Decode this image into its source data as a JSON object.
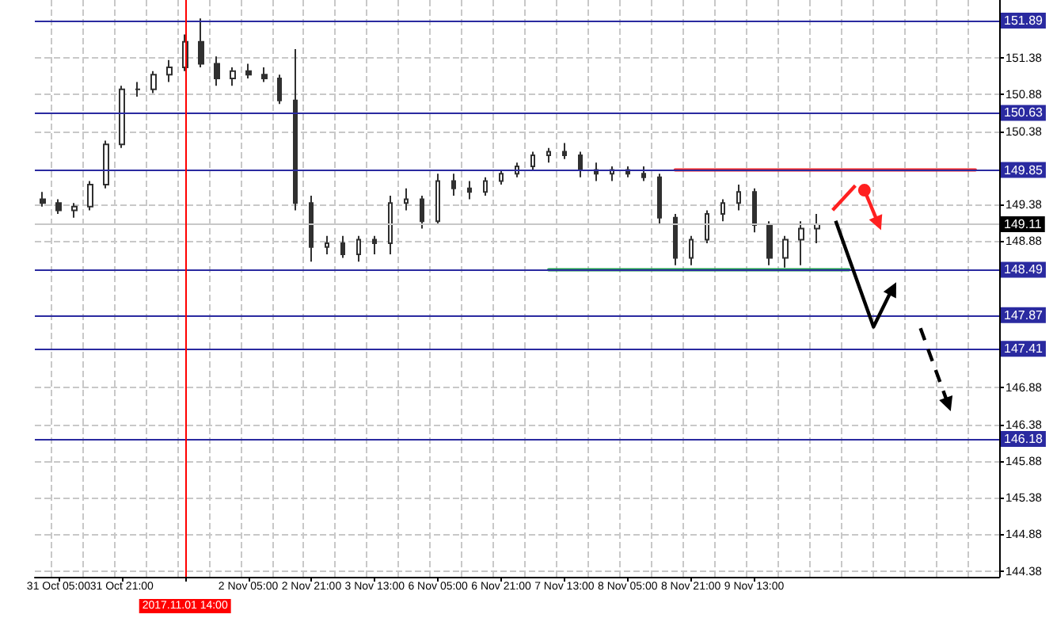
{
  "chart_data": {
    "type": "candlestick",
    "categories": [
      null,
      "31 Oct 05:00",
      null,
      null,
      null,
      "31 Oct 21:00",
      null,
      null,
      null,
      "2017.11.01 14:00",
      null,
      null,
      null,
      "2 Nov 05:00",
      null,
      null,
      null,
      "2 Nov 21:00",
      null,
      null,
      null,
      "3 Nov 13:00",
      null,
      null,
      null,
      "6 Nov 05:00",
      null,
      null,
      null,
      "6 Nov 21:00",
      null,
      null,
      null,
      "7 Nov 13:00",
      null,
      null,
      null,
      "8 Nov 05:00",
      null,
      null,
      null,
      "8 Nov 21:00",
      null,
      null,
      null,
      "9 Nov 13:00",
      null,
      null,
      null,
      null,
      null,
      null,
      null,
      null,
      null,
      null,
      null,
      null,
      null,
      null,
      null
    ],
    "series": [
      {
        "color": "#303030",
        "ohlc": [
          [
            149.45,
            149.55,
            149.35,
            149.4
          ],
          [
            149.4,
            149.45,
            149.25,
            149.3
          ],
          [
            149.3,
            149.4,
            149.2,
            149.35
          ],
          [
            149.35,
            149.7,
            149.3,
            149.65
          ],
          [
            149.65,
            150.25,
            149.6,
            150.2
          ],
          [
            150.2,
            151.0,
            150.15,
            150.95
          ],
          [
            150.95,
            151.05,
            150.85,
            150.95
          ],
          [
            150.95,
            151.2,
            150.9,
            151.15
          ],
          [
            151.15,
            151.35,
            151.05,
            151.25
          ],
          [
            151.25,
            151.7,
            151.2,
            151.6
          ],
          [
            151.6,
            151.92,
            151.25,
            151.3
          ],
          [
            151.3,
            151.4,
            151.0,
            151.1
          ],
          [
            151.1,
            151.25,
            151.0,
            151.2
          ],
          [
            151.2,
            151.3,
            151.1,
            151.15
          ],
          [
            151.15,
            151.25,
            151.05,
            151.1
          ],
          [
            151.1,
            151.15,
            150.75,
            150.8
          ],
          [
            150.8,
            151.5,
            149.3,
            149.4
          ],
          [
            149.4,
            149.5,
            148.6,
            148.8
          ],
          [
            148.8,
            148.95,
            148.7,
            148.85
          ],
          [
            148.85,
            148.95,
            148.65,
            148.7
          ],
          [
            148.7,
            148.95,
            148.6,
            148.9
          ],
          [
            148.9,
            148.95,
            148.7,
            148.85
          ],
          [
            148.85,
            149.5,
            148.7,
            149.4
          ],
          [
            149.4,
            149.6,
            149.3,
            149.45
          ],
          [
            149.45,
            149.5,
            149.05,
            149.15
          ],
          [
            149.15,
            149.8,
            149.1,
            149.7
          ],
          [
            149.7,
            149.8,
            149.5,
            149.6
          ],
          [
            149.6,
            149.7,
            149.45,
            149.55
          ],
          [
            149.55,
            149.75,
            149.5,
            149.7
          ],
          [
            149.7,
            149.85,
            149.65,
            149.8
          ],
          [
            149.8,
            149.95,
            149.75,
            149.9
          ],
          [
            149.9,
            150.1,
            149.85,
            150.05
          ],
          [
            150.05,
            150.15,
            149.95,
            150.1
          ],
          [
            150.1,
            150.22,
            150.0,
            150.05
          ],
          [
            150.05,
            150.1,
            149.75,
            149.85
          ],
          [
            149.85,
            149.95,
            149.7,
            149.8
          ],
          [
            149.8,
            149.9,
            149.7,
            149.85
          ],
          [
            149.85,
            149.9,
            149.75,
            149.8
          ],
          [
            149.8,
            149.9,
            149.7,
            149.75
          ],
          [
            149.75,
            149.8,
            149.1,
            149.2
          ],
          [
            149.2,
            149.25,
            148.55,
            148.65
          ],
          [
            148.65,
            148.95,
            148.55,
            148.9
          ],
          [
            148.9,
            149.3,
            148.85,
            149.25
          ],
          [
            149.25,
            149.45,
            149.15,
            149.4
          ],
          [
            149.4,
            149.65,
            149.3,
            149.55
          ],
          [
            149.55,
            149.6,
            149.0,
            149.1
          ],
          [
            149.1,
            149.15,
            148.55,
            148.65
          ],
          [
            148.65,
            148.95,
            148.52,
            148.9
          ],
          [
            148.9,
            149.15,
            148.55,
            149.05
          ],
          [
            149.05,
            149.25,
            148.85,
            149.11
          ],
          null,
          null,
          null,
          null,
          null,
          null,
          null,
          null,
          null,
          null,
          null
        ]
      },
      {
        "type": "line",
        "color": "#1a9a4a",
        "values": [
          null,
          null,
          null,
          null,
          null,
          null,
          null,
          null,
          null,
          null,
          null,
          null,
          null,
          null,
          null,
          null,
          null,
          null,
          null,
          null,
          null,
          null,
          null,
          null,
          null,
          null,
          null,
          null,
          null,
          null,
          null,
          null,
          148.49,
          148.49,
          148.49,
          148.49,
          148.49,
          148.49,
          148.49,
          148.49,
          148.49,
          148.49,
          148.49,
          148.49,
          148.49,
          148.49,
          148.49,
          148.49,
          148.49,
          148.49,
          148.49,
          148.49,
          null,
          null,
          null,
          null,
          null,
          null,
          null,
          null,
          null
        ]
      },
      {
        "type": "line",
        "color": "#ff2020",
        "values": [
          null,
          null,
          null,
          null,
          null,
          null,
          null,
          null,
          null,
          null,
          null,
          null,
          null,
          null,
          null,
          null,
          null,
          null,
          null,
          null,
          null,
          null,
          null,
          null,
          null,
          null,
          null,
          null,
          null,
          null,
          null,
          null,
          null,
          null,
          null,
          null,
          null,
          null,
          null,
          null,
          149.85,
          149.85,
          149.85,
          149.85,
          149.85,
          149.85,
          149.85,
          149.85,
          149.85,
          149.85,
          149.85,
          149.85,
          149.85,
          149.85,
          149.85,
          149.85,
          149.85,
          149.85,
          149.85,
          149.85,
          null
        ]
      }
    ],
    "ylim": [
      144.3,
      152.17
    ],
    "yticks": [
      144.38,
      144.88,
      145.38,
      145.88,
      146.38,
      146.88,
      148.88,
      149.38,
      150.38,
      150.88,
      151.38
    ],
    "ref_lines": [
      {
        "axis": "y",
        "value": 151.89,
        "label": "151.89",
        "color": "#2a2aa0"
      },
      {
        "axis": "y",
        "value": 150.63,
        "label": "150.63",
        "color": "#2a2aa0"
      },
      {
        "axis": "y",
        "value": 149.85,
        "label": "149.85",
        "color": "#2a2aa0"
      },
      {
        "axis": "y",
        "value": 149.11,
        "label": "149.11",
        "color": "#c8c8c8"
      },
      {
        "axis": "y",
        "value": 148.49,
        "label": "148.49",
        "color": "#2a2aa0"
      },
      {
        "axis": "y",
        "value": 147.87,
        "label": "147.87",
        "color": "#2a2aa0"
      },
      {
        "axis": "y",
        "value": 147.41,
        "label": "147.41",
        "color": "#2a2aa0"
      },
      {
        "axis": "y",
        "value": 146.18,
        "label": "146.18",
        "color": "#2a2aa0"
      },
      {
        "axis": "x",
        "value": "2017.11.01 14:00",
        "color": "#ff0000"
      }
    ],
    "grid": true,
    "marker": "none",
    "line_style": "solid"
  }
}
